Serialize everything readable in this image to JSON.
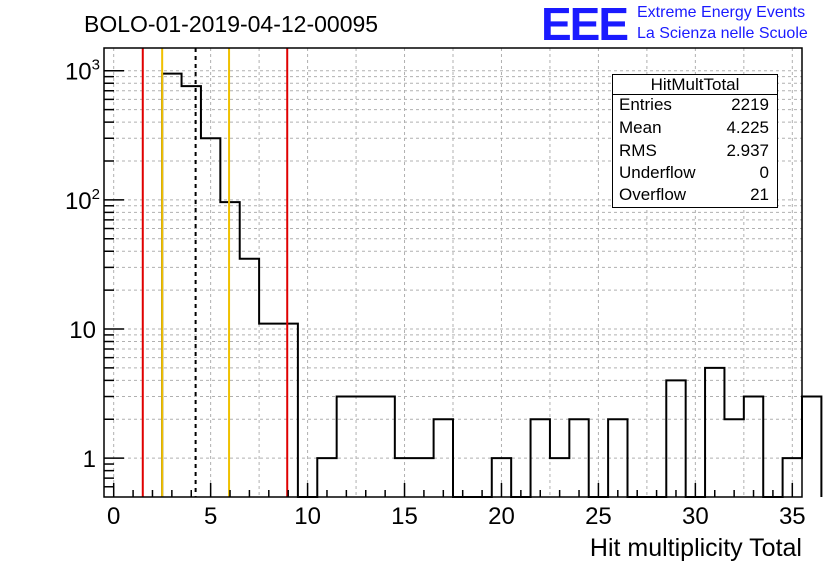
{
  "header": {
    "title": "BOLO-01-2019-04-12-00095",
    "logo_text": "EEE",
    "logo_line1": "Extreme Energy Events",
    "logo_line2": "La Scienza nelle Scuole"
  },
  "stats": {
    "name": "HitMultTotal",
    "rows": [
      {
        "label": "Entries",
        "value": "2219"
      },
      {
        "label": "Mean",
        "value": "4.225"
      },
      {
        "label": "RMS",
        "value": "2.937"
      },
      {
        "label": "Underflow",
        "value": "0"
      },
      {
        "label": "Overflow",
        "value": "21"
      }
    ]
  },
  "colors": {
    "frame": "#000000",
    "grid": "#b0b0b0",
    "histogram": "#000000",
    "red_line": "#e00000",
    "yellow_line": "#f0c000"
  },
  "chart_data": {
    "type": "histogram",
    "xlabel": "Hit multiplicity Total",
    "ylabel": "",
    "xlim": [
      -0.5,
      35.5
    ],
    "ylim": [
      0.5,
      1500
    ],
    "yscale": "log",
    "grid": true,
    "bin_edges_start": 2.5,
    "bin_width": 1,
    "values": [
      950,
      760,
      300,
      96,
      35,
      11,
      11,
      0,
      1,
      3,
      3,
      3,
      1,
      1,
      2,
      0,
      0,
      1,
      0,
      2,
      1,
      2,
      0,
      2,
      0,
      0,
      4,
      0,
      5,
      2,
      3,
      0,
      1,
      3
    ],
    "x_ticks": [
      0,
      5,
      10,
      15,
      20,
      25,
      30,
      35
    ],
    "y_ticks": [
      {
        "value": 1,
        "label": "1"
      },
      {
        "value": 10,
        "label": "10"
      },
      {
        "value": 100,
        "label": "10",
        "exp": "2"
      },
      {
        "value": 1000,
        "label": "10",
        "exp": "3"
      }
    ],
    "vertical_lines": [
      {
        "x": 1.5,
        "color": "red",
        "style": "solid"
      },
      {
        "x": 2.5,
        "color": "yellow",
        "style": "solid"
      },
      {
        "x": 4.225,
        "color": "black",
        "style": "dashed"
      },
      {
        "x": 5.95,
        "color": "yellow",
        "style": "solid"
      },
      {
        "x": 8.95,
        "color": "red",
        "style": "solid"
      }
    ]
  }
}
